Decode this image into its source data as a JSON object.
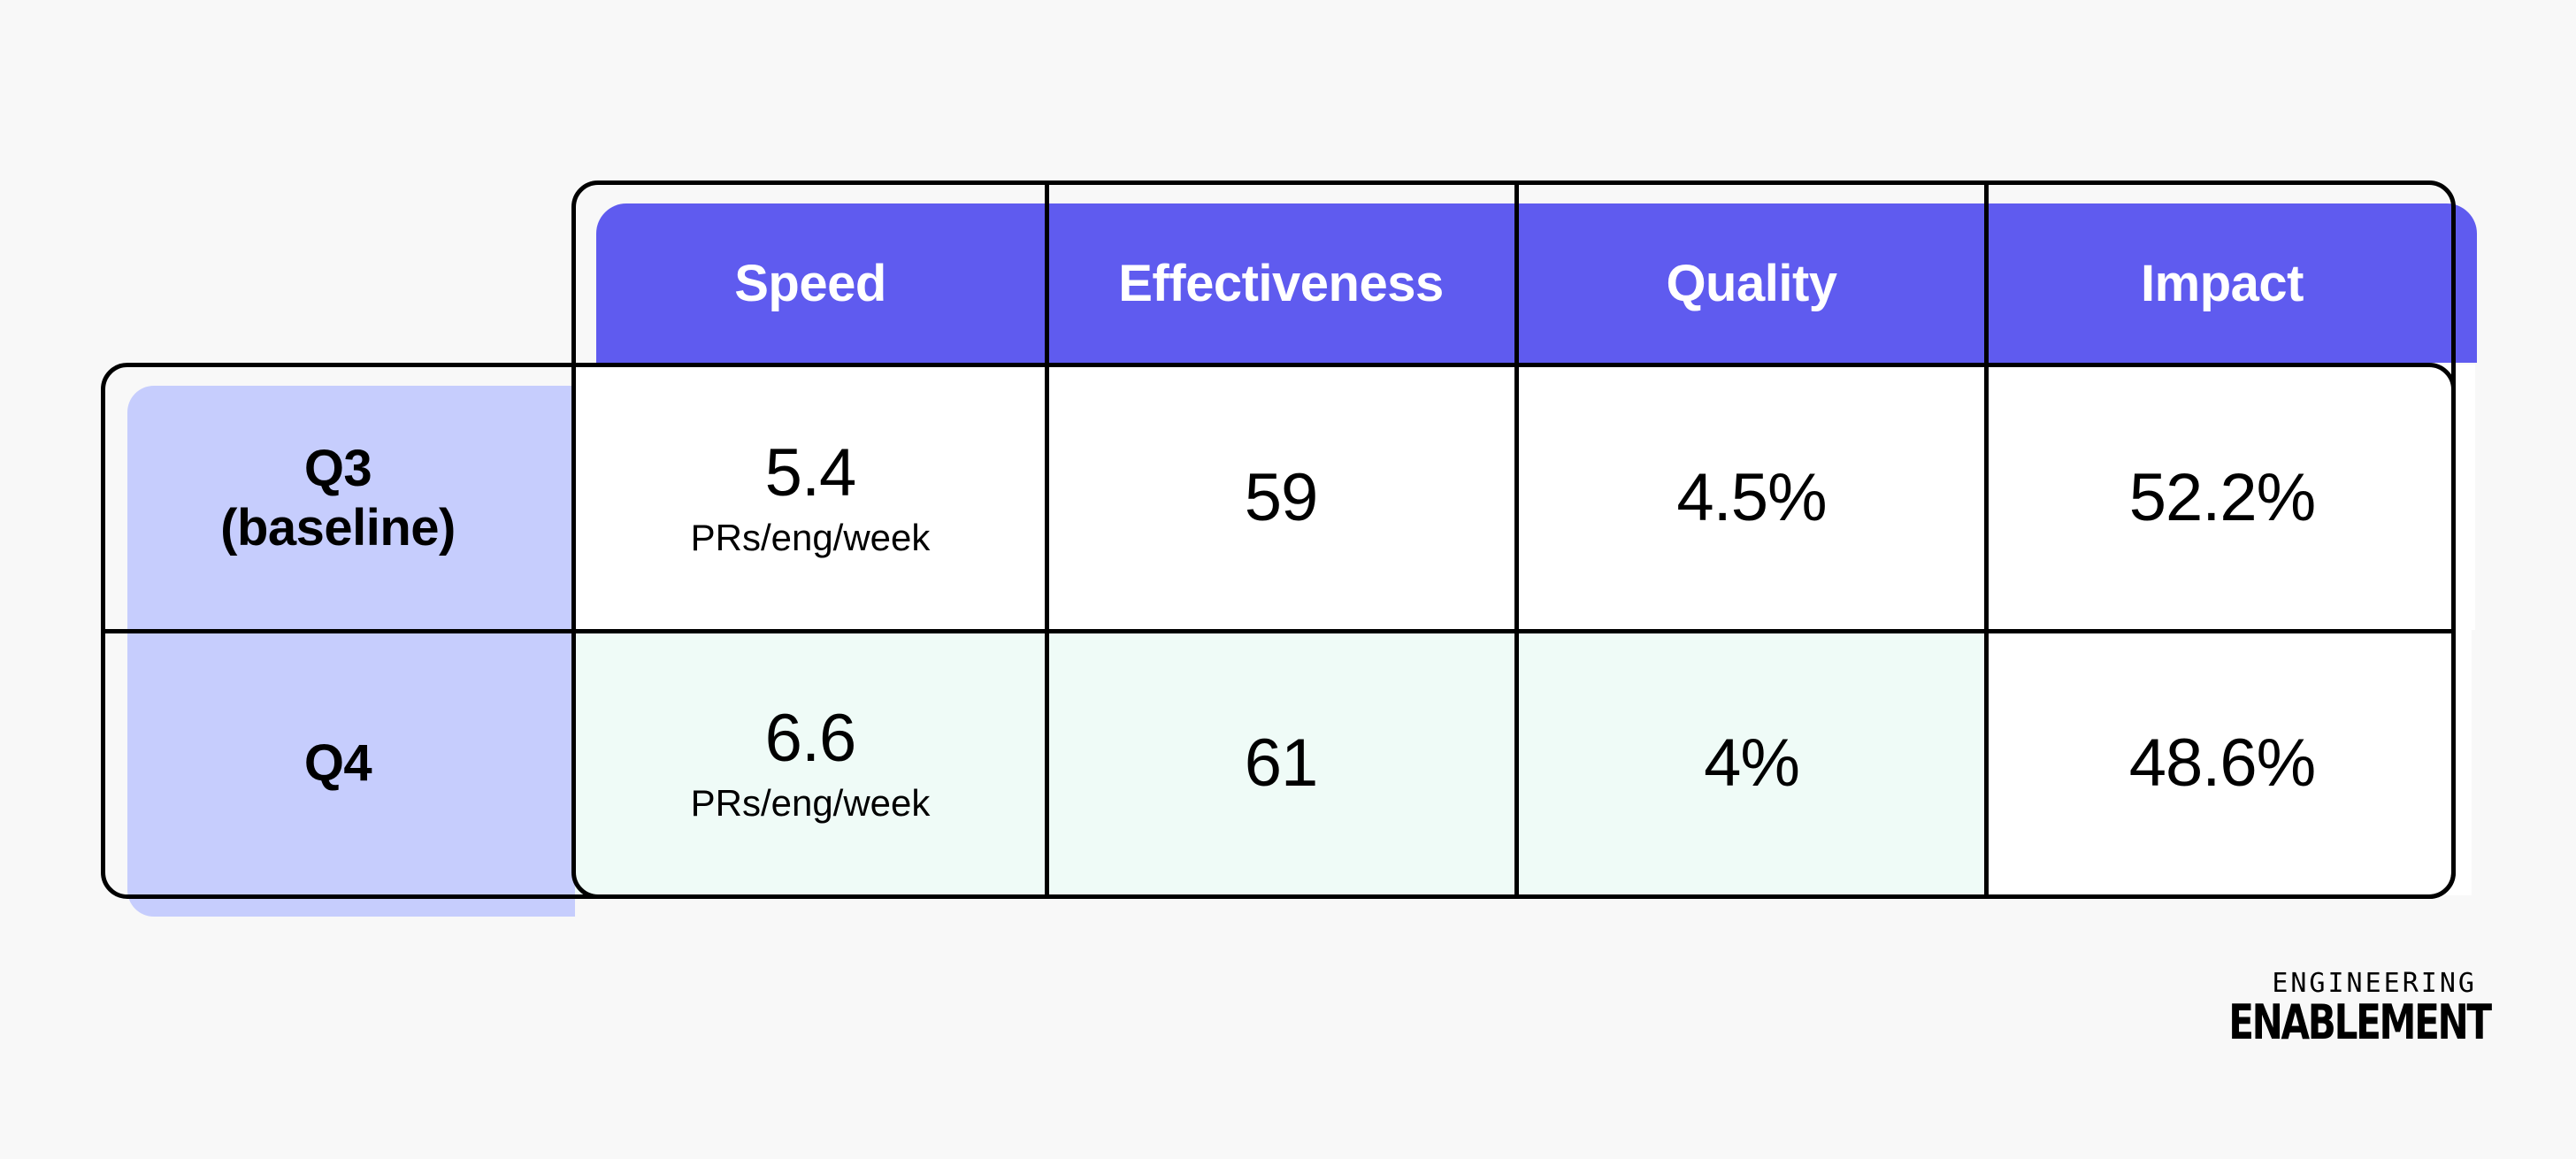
{
  "chart_data": {
    "type": "table",
    "columns": [
      "Speed",
      "Effectiveness",
      "Quality",
      "Impact"
    ],
    "rows": [
      {
        "label": [
          "Q3",
          "(baseline)"
        ],
        "cells": [
          {
            "value": "5.4",
            "unit": "PRs/eng/week"
          },
          {
            "value": "59"
          },
          {
            "value": "4.5%"
          },
          {
            "value": "52.2%"
          }
        ]
      },
      {
        "label": [
          "Q4"
        ],
        "cells": [
          {
            "value": "6.6",
            "unit": "PRs/eng/week"
          },
          {
            "value": "61"
          },
          {
            "value": "4%"
          },
          {
            "value": "48.6%"
          }
        ]
      }
    ]
  },
  "colors": {
    "header_fill": "#5f5bef",
    "row_label_fill": "#c6cdfd",
    "improved_cell_fill": "#effbf7",
    "cell_fill": "#ffffff",
    "background": "#f8f8f8"
  },
  "brand": {
    "line1": "ENGINEERING",
    "line2": "ENABLEMENT"
  }
}
